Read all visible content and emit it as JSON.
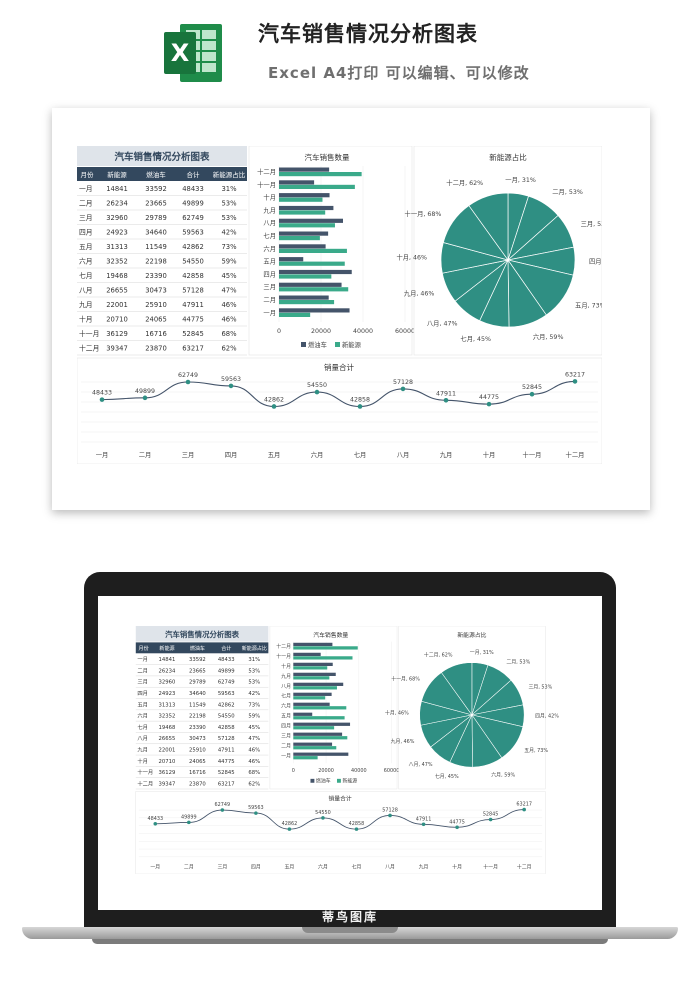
{
  "header": {
    "title": "汽车销售情况分析图表",
    "subtitle": "Excel A4打印 可以编辑、可以修改",
    "logo_letter": "X"
  },
  "table": {
    "title": "汽车销售情况分析图表",
    "columns": [
      "月份",
      "新能源",
      "燃油车",
      "合计",
      "新能源占比"
    ],
    "rows": [
      [
        "一月",
        "14841",
        "33592",
        "48433",
        "31%"
      ],
      [
        "二月",
        "26234",
        "23665",
        "49899",
        "53%"
      ],
      [
        "三月",
        "32960",
        "29789",
        "62749",
        "53%"
      ],
      [
        "四月",
        "24923",
        "34640",
        "59563",
        "42%"
      ],
      [
        "五月",
        "31313",
        "11549",
        "42862",
        "73%"
      ],
      [
        "六月",
        "32352",
        "22198",
        "54550",
        "59%"
      ],
      [
        "七月",
        "19468",
        "23390",
        "42858",
        "45%"
      ],
      [
        "八月",
        "26655",
        "30473",
        "57128",
        "47%"
      ],
      [
        "九月",
        "22001",
        "25910",
        "47911",
        "46%"
      ],
      [
        "十月",
        "20710",
        "24065",
        "44775",
        "46%"
      ],
      [
        "十一月",
        "36129",
        "16716",
        "52845",
        "68%"
      ],
      [
        "十二月",
        "39347",
        "23870",
        "63217",
        "62%"
      ]
    ],
    "header_color": "#33485e"
  },
  "chart_data": [
    {
      "type": "bar",
      "title": "汽车销售数量",
      "orientation": "horizontal",
      "categories": [
        "一月",
        "二月",
        "三月",
        "四月",
        "五月",
        "六月",
        "七月",
        "八月",
        "九月",
        "十月",
        "十一月",
        "十二月"
      ],
      "series": [
        {
          "name": "燃油车",
          "color": "#44546a",
          "values": [
            33592,
            23665,
            29789,
            34640,
            11549,
            22198,
            23390,
            30473,
            25910,
            24065,
            16716,
            23870
          ]
        },
        {
          "name": "新能源",
          "color": "#3aaa8a",
          "values": [
            14841,
            26234,
            32960,
            24923,
            31313,
            32352,
            19468,
            26655,
            22001,
            20710,
            36129,
            39347
          ]
        }
      ],
      "xlim": [
        0,
        60000
      ],
      "xticks": [
        "0",
        "20000",
        "40000",
        "60000"
      ],
      "legend": "bottom"
    },
    {
      "type": "pie",
      "title": "新能源占比",
      "color": "#2f8f83",
      "labels": [
        "一月, 31%",
        "二月, 53%",
        "三月, 53%",
        "四月, 42%",
        "五月, 73%",
        "六月, 59%",
        "七月, 45%",
        "八月, 47%",
        "九月, 46%",
        "十月, 46%",
        "十一月, 68%",
        "十二月, 62%"
      ],
      "values": [
        31,
        53,
        53,
        42,
        73,
        59,
        45,
        47,
        46,
        46,
        68,
        62
      ]
    },
    {
      "type": "line",
      "title": "销量合计",
      "color": "#2f8f83",
      "categories": [
        "一月",
        "二月",
        "三月",
        "四月",
        "五月",
        "六月",
        "七月",
        "八月",
        "九月",
        "十月",
        "十一月",
        "十二月"
      ],
      "values": [
        48433,
        49899,
        62749,
        59563,
        42862,
        54550,
        42858,
        57128,
        47911,
        44775,
        52845,
        63217
      ],
      "grid": true
    }
  ],
  "laptop": {
    "brand": "蒂鸟图库"
  },
  "watermark": "蒂鸟图库"
}
